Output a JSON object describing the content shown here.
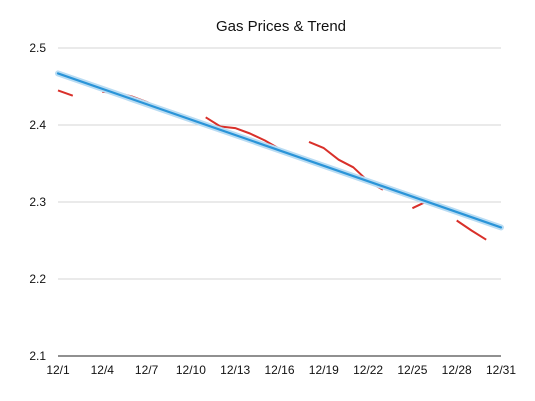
{
  "chart_data": {
    "type": "line",
    "title": "Gas Prices & Trend",
    "xlabel": "",
    "ylabel": "",
    "xlim": [
      1,
      31
    ],
    "ylim": [
      2.1,
      2.5
    ],
    "grid": true,
    "x_ticks": [
      {
        "day": 1,
        "label": "12/1"
      },
      {
        "day": 4,
        "label": "12/4"
      },
      {
        "day": 7,
        "label": "12/7"
      },
      {
        "day": 10,
        "label": "12/10"
      },
      {
        "day": 13,
        "label": "12/13"
      },
      {
        "day": 16,
        "label": "12/16"
      },
      {
        "day": 19,
        "label": "12/19"
      },
      {
        "day": 22,
        "label": "12/22"
      },
      {
        "day": 25,
        "label": "12/25"
      },
      {
        "day": 28,
        "label": "12/28"
      },
      {
        "day": 31,
        "label": "12/31"
      }
    ],
    "y_ticks": [
      {
        "value": 2.5,
        "label": "2.5"
      },
      {
        "value": 2.4,
        "label": "2.4"
      },
      {
        "value": 2.3,
        "label": "2.3"
      },
      {
        "value": 2.2,
        "label": "2.2"
      },
      {
        "value": 2.1,
        "label": "2.1"
      }
    ],
    "series": [
      {
        "color": "#d9302a",
        "segments": [
          [
            [
              1,
              2.445
            ],
            [
              2,
              2.438
            ]
          ],
          [
            [
              4,
              2.443
            ],
            [
              5,
              2.442
            ],
            [
              6,
              2.437
            ],
            [
              7,
              2.43
            ],
            [
              8,
              2.42
            ],
            [
              9,
              2.414
            ]
          ],
          [
            [
              11,
              2.41
            ],
            [
              12,
              2.398
            ],
            [
              13,
              2.396
            ],
            [
              14,
              2.389
            ],
            [
              15,
              2.38
            ],
            [
              16,
              2.369
            ],
            [
              16.5,
              2.361
            ]
          ],
          [
            [
              18,
              2.378
            ],
            [
              19,
              2.37
            ],
            [
              20,
              2.355
            ],
            [
              21,
              2.345
            ],
            [
              22,
              2.327
            ],
            [
              23,
              2.316
            ]
          ],
          [
            [
              25,
              2.292
            ],
            [
              26,
              2.301
            ]
          ],
          [
            [
              28,
              2.276
            ],
            [
              29,
              2.263
            ],
            [
              30,
              2.251
            ]
          ]
        ]
      },
      {
        "color": "#2a94d8",
        "segments": [
          [
            [
              1,
              2.467
            ],
            [
              31,
              2.267
            ]
          ]
        ]
      }
    ]
  }
}
